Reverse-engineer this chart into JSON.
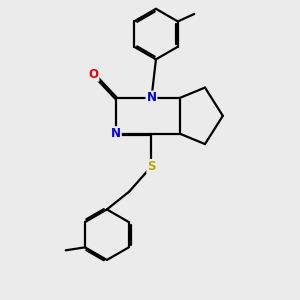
{
  "bg_color": "#ebebeb",
  "bond_color": "#000000",
  "bond_width": 1.6,
  "dbo": 0.055,
  "atom_colors": {
    "N": "#0000ee",
    "O": "#ee0000",
    "S": "#bbaa00",
    "C": "#000000"
  },
  "layout": {
    "xlim": [
      0,
      10
    ],
    "ylim": [
      0,
      10
    ]
  }
}
